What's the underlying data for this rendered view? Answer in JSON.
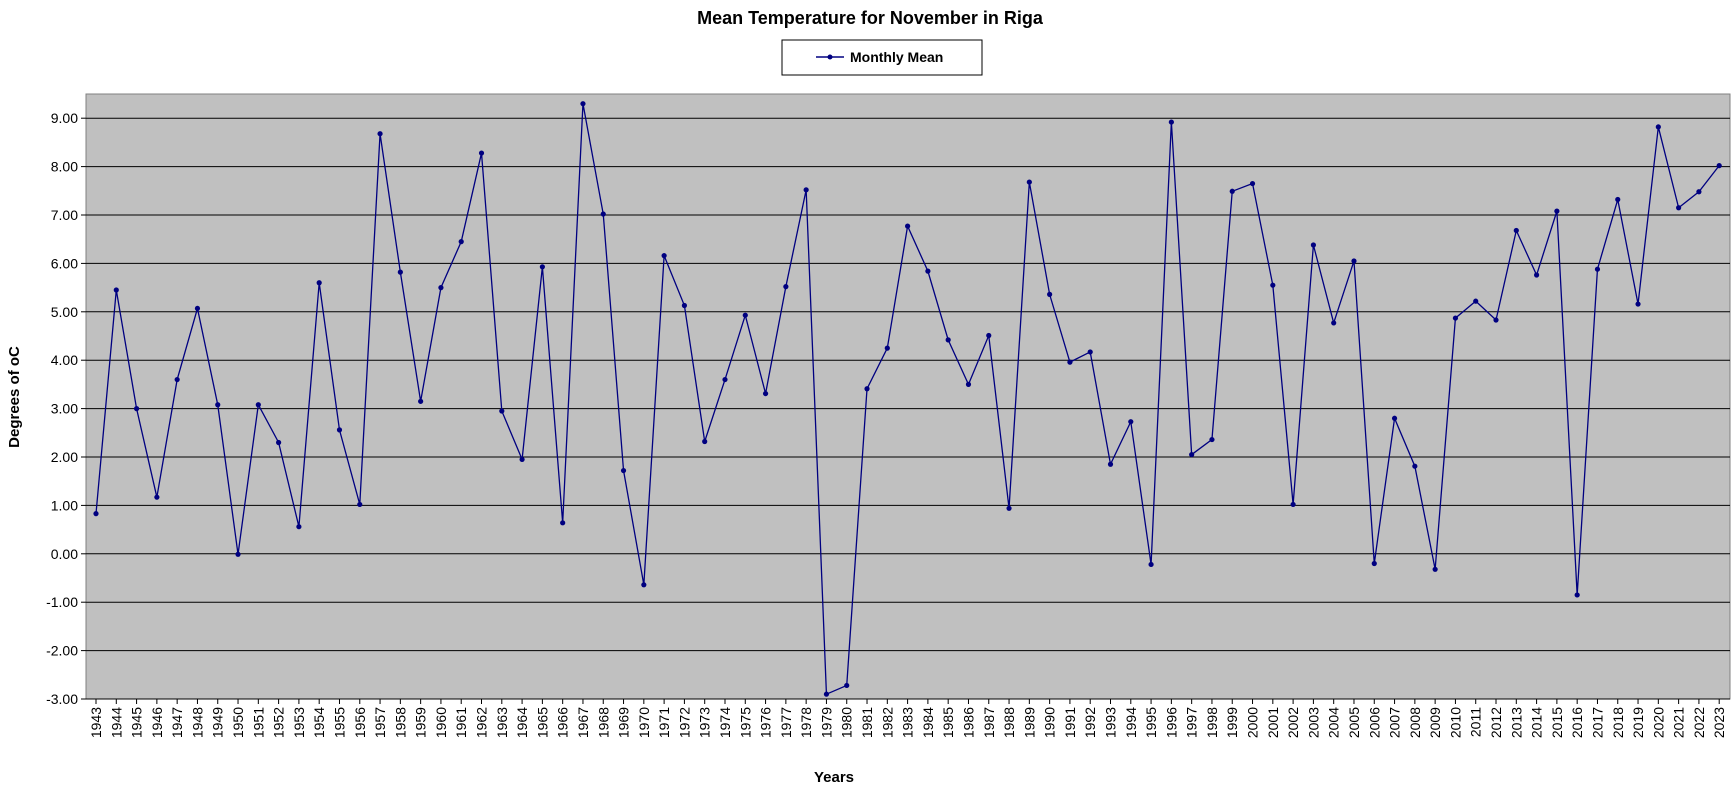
{
  "colors": {
    "plot_background": "#c0c0c0",
    "series_line": "#000080",
    "gridline": "#000000"
  },
  "chart_data": {
    "type": "line",
    "title": "Mean Temperature for November in Riga",
    "xlabel": "Years",
    "ylabel": "Degrees of  oC",
    "ylim": [
      -3,
      9.5
    ],
    "yticks": [
      "9.00",
      "8.00",
      "7.00",
      "6.00",
      "5.00",
      "4.00",
      "3.00",
      "2.00",
      "1.00",
      "0.00",
      "-1.00",
      "-2.00",
      "-3.00"
    ],
    "ytick_values": [
      9,
      8,
      7,
      6,
      5,
      4,
      3,
      2,
      1,
      0,
      -1,
      -2,
      -3
    ],
    "grid": true,
    "legend_position": "top-center",
    "x": [
      "1943",
      "1944",
      "1945",
      "1946",
      "1947",
      "1948",
      "1949",
      "1950",
      "1951",
      "1952",
      "1953",
      "1954",
      "1955",
      "1956",
      "1957",
      "1958",
      "1959",
      "1960",
      "1961",
      "1962",
      "1963",
      "1964",
      "1965",
      "1966",
      "1967",
      "1968",
      "1969",
      "1970",
      "1971",
      "1972",
      "1973",
      "1974",
      "1975",
      "1976",
      "1977",
      "1978",
      "1979",
      "1980",
      "1981",
      "1982",
      "1983",
      "1984",
      "1985",
      "1986",
      "1987",
      "1988",
      "1989",
      "1990",
      "1991",
      "1992",
      "1993",
      "1994",
      "1995",
      "1996",
      "1997",
      "1998",
      "1999",
      "2000",
      "2001",
      "2002",
      "2003",
      "2004",
      "2005",
      "2006",
      "2007",
      "2008",
      "2009",
      "2010",
      "2011",
      "2012",
      "2013",
      "2014",
      "2015",
      "2016",
      "2017",
      "2018",
      "2019",
      "2020",
      "2021",
      "2022",
      "2023"
    ],
    "series": [
      {
        "name": "Monthly Mean",
        "values": [
          0.83,
          5.45,
          3.0,
          1.17,
          3.6,
          5.07,
          3.08,
          -0.01,
          3.08,
          2.3,
          0.56,
          5.6,
          2.56,
          1.02,
          8.68,
          5.82,
          3.15,
          5.5,
          6.45,
          8.28,
          2.95,
          1.95,
          5.93,
          0.64,
          9.3,
          7.02,
          1.72,
          -0.64,
          6.16,
          5.13,
          2.32,
          3.6,
          4.93,
          3.31,
          5.52,
          7.52,
          -2.9,
          -2.72,
          3.41,
          4.25,
          6.77,
          5.84,
          4.42,
          3.5,
          4.51,
          0.94,
          7.68,
          5.36,
          3.96,
          4.17,
          1.85,
          2.73,
          -0.22,
          8.92,
          2.05,
          2.36,
          7.49,
          7.65,
          5.55,
          1.02,
          6.38,
          4.77,
          6.05,
          -0.2,
          2.8,
          1.81,
          -0.32,
          4.87,
          5.22,
          4.83,
          6.68,
          5.76,
          7.08,
          -0.85,
          5.88,
          7.32,
          5.16,
          8.82,
          7.15,
          7.48,
          8.02
        ]
      }
    ]
  }
}
